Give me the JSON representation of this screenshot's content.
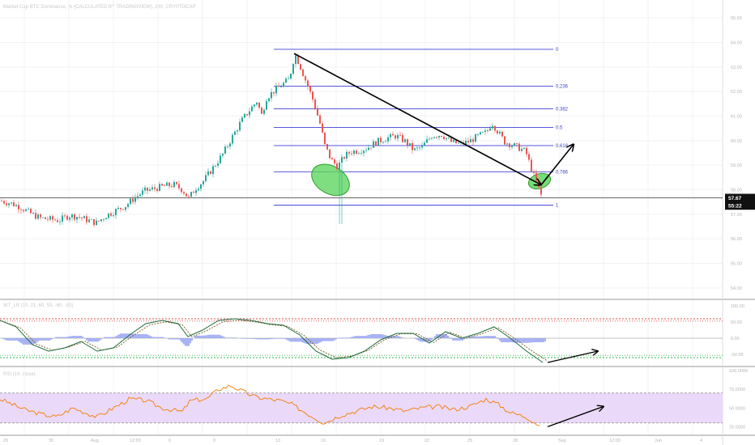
{
  "header": {
    "main_title": "Market Cap BTC Dominance, % (CALCULATED BY TRADINGVIEW), 240, CRYPTOCAP",
    "wt_title": "WT_LB (10, 21, 60, 53, -60, -53)",
    "rsi_title": "RSI (14, close)"
  },
  "colors": {
    "up": "#26a69a",
    "down": "#ef5350",
    "fib": "#3f3fd4",
    "ellipse_fill": "#5fd65f",
    "ellipse_stroke": "#2e9b2e",
    "arrow": "#000000",
    "rsi_line": "#f57c00",
    "rsi_band": "#ead9f8",
    "wt_line": "#1e6b3c",
    "wt_signal": "#7a5a20",
    "wt_hist": "#9aa6f2",
    "price_tag": "#111111"
  },
  "chart_data": [
    {
      "type": "candlestick",
      "title": "Market Cap BTC Dominance, % (CALCULATED BY TRADINGVIEW), 240, CRYPTOCAP",
      "y_unit": "%",
      "ylim": [
        54.0,
        65.0
      ],
      "y_ticks": [
        "65.00",
        "64.00",
        "63.00",
        "62.00",
        "61.00",
        "60.00",
        "59.00",
        "58.00",
        "57.00",
        "56.00",
        "55.00",
        "54.00"
      ],
      "x_ticks": [
        "20",
        "30",
        "Aug",
        "12:00",
        "6",
        "9",
        "13",
        "16",
        "19",
        "22",
        "25",
        "28",
        "Sep",
        "12:00",
        "Jun",
        "4",
        "7",
        "10"
      ],
      "price_labels": [
        {
          "label": "57.67",
          "value": 57.67
        },
        {
          "label": "55:22",
          "value": 57.35
        }
      ],
      "horizontal_line": 57.67,
      "fibonacci": [
        {
          "level": "0",
          "value": 63.72
        },
        {
          "level": "0.236",
          "value": 62.22
        },
        {
          "level": "0.382",
          "value": 61.3
        },
        {
          "level": "0.5",
          "value": 60.54
        },
        {
          "level": "0.618",
          "value": 59.8
        },
        {
          "level": "0.786",
          "value": 58.73
        },
        {
          "level": "1",
          "value": 57.37
        }
      ],
      "price_path": [
        [
          0,
          57.55
        ],
        [
          12,
          57.45
        ],
        [
          24,
          57.3
        ],
        [
          36,
          57.05
        ],
        [
          48,
          56.85
        ],
        [
          60,
          56.8
        ],
        [
          72,
          56.75
        ],
        [
          84,
          56.95
        ],
        [
          96,
          56.9
        ],
        [
          108,
          56.75
        ],
        [
          118,
          56.65
        ],
        [
          130,
          56.95
        ],
        [
          142,
          57.15
        ],
        [
          154,
          57.35
        ],
        [
          166,
          57.7
        ],
        [
          178,
          57.95
        ],
        [
          190,
          58.05
        ],
        [
          202,
          58.15
        ],
        [
          214,
          58.2
        ],
        [
          224,
          58.0
        ],
        [
          232,
          57.65
        ],
        [
          240,
          58.05
        ],
        [
          250,
          58.35
        ],
        [
          262,
          58.9
        ],
        [
          274,
          59.45
        ],
        [
          284,
          60.05
        ],
        [
          296,
          60.75
        ],
        [
          306,
          61.2
        ],
        [
          316,
          61.6
        ],
        [
          322,
          61.05
        ],
        [
          328,
          61.75
        ],
        [
          338,
          62.05
        ],
        [
          348,
          62.3
        ],
        [
          356,
          62.5
        ],
        [
          363,
          63.55
        ],
        [
          370,
          63.0
        ],
        [
          378,
          62.3
        ],
        [
          386,
          61.6
        ],
        [
          394,
          60.7
        ],
        [
          400,
          59.8
        ],
        [
          408,
          59.2
        ],
        [
          416,
          58.95
        ],
        [
          424,
          59.35
        ],
        [
          432,
          59.55
        ],
        [
          442,
          59.6
        ],
        [
          452,
          59.7
        ],
        [
          464,
          59.95
        ],
        [
          476,
          60.1
        ],
        [
          488,
          60.2
        ],
        [
          500,
          59.95
        ],
        [
          510,
          59.6
        ],
        [
          520,
          59.75
        ],
        [
          532,
          60.2
        ],
        [
          544,
          60.25
        ],
        [
          556,
          59.95
        ],
        [
          568,
          59.85
        ],
        [
          580,
          60.0
        ],
        [
          590,
          60.2
        ],
        [
          600,
          60.35
        ],
        [
          606,
          60.75
        ],
        [
          614,
          60.35
        ],
        [
          622,
          59.95
        ],
        [
          630,
          59.85
        ],
        [
          640,
          59.7
        ],
        [
          648,
          59.55
        ],
        [
          656,
          58.75
        ],
        [
          662,
          58.2
        ],
        [
          668,
          57.7
        ]
      ],
      "annotations": {
        "ellipses": [
          {
            "x": 408,
            "y": 58.4
          },
          {
            "x": 666,
            "y": 58.35
          }
        ],
        "trendline": [
          [
            363,
            63.55
          ],
          [
            668,
            58.2
          ]
        ],
        "up_arrow": [
          [
            668,
            58.2
          ],
          [
            708,
            59.85
          ]
        ]
      }
    },
    {
      "type": "line",
      "title": "WT_LB (10, 21, 60, 53, -60, -53)",
      "ylim": [
        -80,
        100
      ],
      "y_ticks": [
        "100.00",
        "50.00",
        "0.00",
        "-50.00"
      ],
      "levels": [
        60,
        53,
        -60,
        -53
      ],
      "series": [
        {
          "values": [
            [
              0,
              55
            ],
            [
              20,
              35
            ],
            [
              40,
              -20
            ],
            [
              60,
              -40
            ],
            [
              80,
              -30
            ],
            [
              100,
              -10
            ],
            [
              120,
              -40
            ],
            [
              140,
              -30
            ],
            [
              160,
              10
            ],
            [
              180,
              45
            ],
            [
              200,
              55
            ],
            [
              220,
              45
            ],
            [
              232,
              5
            ],
            [
              250,
              25
            ],
            [
              270,
              55
            ],
            [
              290,
              60
            ],
            [
              310,
              55
            ],
            [
              330,
              45
            ],
            [
              350,
              40
            ],
            [
              370,
              10
            ],
            [
              390,
              -40
            ],
            [
              410,
              -65
            ],
            [
              430,
              -60
            ],
            [
              450,
              -40
            ],
            [
              470,
              -5
            ],
            [
              490,
              15
            ],
            [
              510,
              15
            ],
            [
              530,
              -15
            ],
            [
              550,
              20
            ],
            [
              570,
              0
            ],
            [
              590,
              15
            ],
            [
              610,
              35
            ],
            [
              630,
              0
            ],
            [
              650,
              -40
            ],
            [
              670,
              -75
            ]
          ]
        }
      ],
      "annotations": {
        "arrow": [
          [
            676,
            -75
          ],
          [
            738,
            -40
          ]
        ]
      }
    },
    {
      "type": "line",
      "title": "RSI (14, close)",
      "ylim": [
        20,
        100
      ],
      "y_ticks": [
        "100.0000",
        "75.0000",
        "50.0000",
        "25.0000"
      ],
      "band": [
        30,
        70
      ],
      "series": [
        {
          "values": [
            [
              0,
              62
            ],
            [
              15,
              55
            ],
            [
              30,
              48
            ],
            [
              50,
              42
            ],
            [
              70,
              38
            ],
            [
              90,
              50
            ],
            [
              105,
              44
            ],
            [
              120,
              38
            ],
            [
              140,
              50
            ],
            [
              160,
              62
            ],
            [
              180,
              60
            ],
            [
              200,
              50
            ],
            [
              225,
              45
            ],
            [
              235,
              60
            ],
            [
              255,
              62
            ],
            [
              270,
              75
            ],
            [
              285,
              80
            ],
            [
              300,
              72
            ],
            [
              315,
              65
            ],
            [
              330,
              62
            ],
            [
              345,
              60
            ],
            [
              360,
              55
            ],
            [
              380,
              42
            ],
            [
              400,
              30
            ],
            [
              420,
              40
            ],
            [
              440,
              46
            ],
            [
              460,
              52
            ],
            [
              480,
              50
            ],
            [
              500,
              46
            ],
            [
              520,
              50
            ],
            [
              540,
              52
            ],
            [
              560,
              48
            ],
            [
              580,
              52
            ],
            [
              600,
              62
            ],
            [
              615,
              55
            ],
            [
              630,
              44
            ],
            [
              650,
              38
            ],
            [
              668,
              25
            ]
          ]
        }
      ],
      "annotations": {
        "arrow": [
          [
            676,
            25
          ],
          [
            745,
            52
          ]
        ]
      }
    }
  ]
}
